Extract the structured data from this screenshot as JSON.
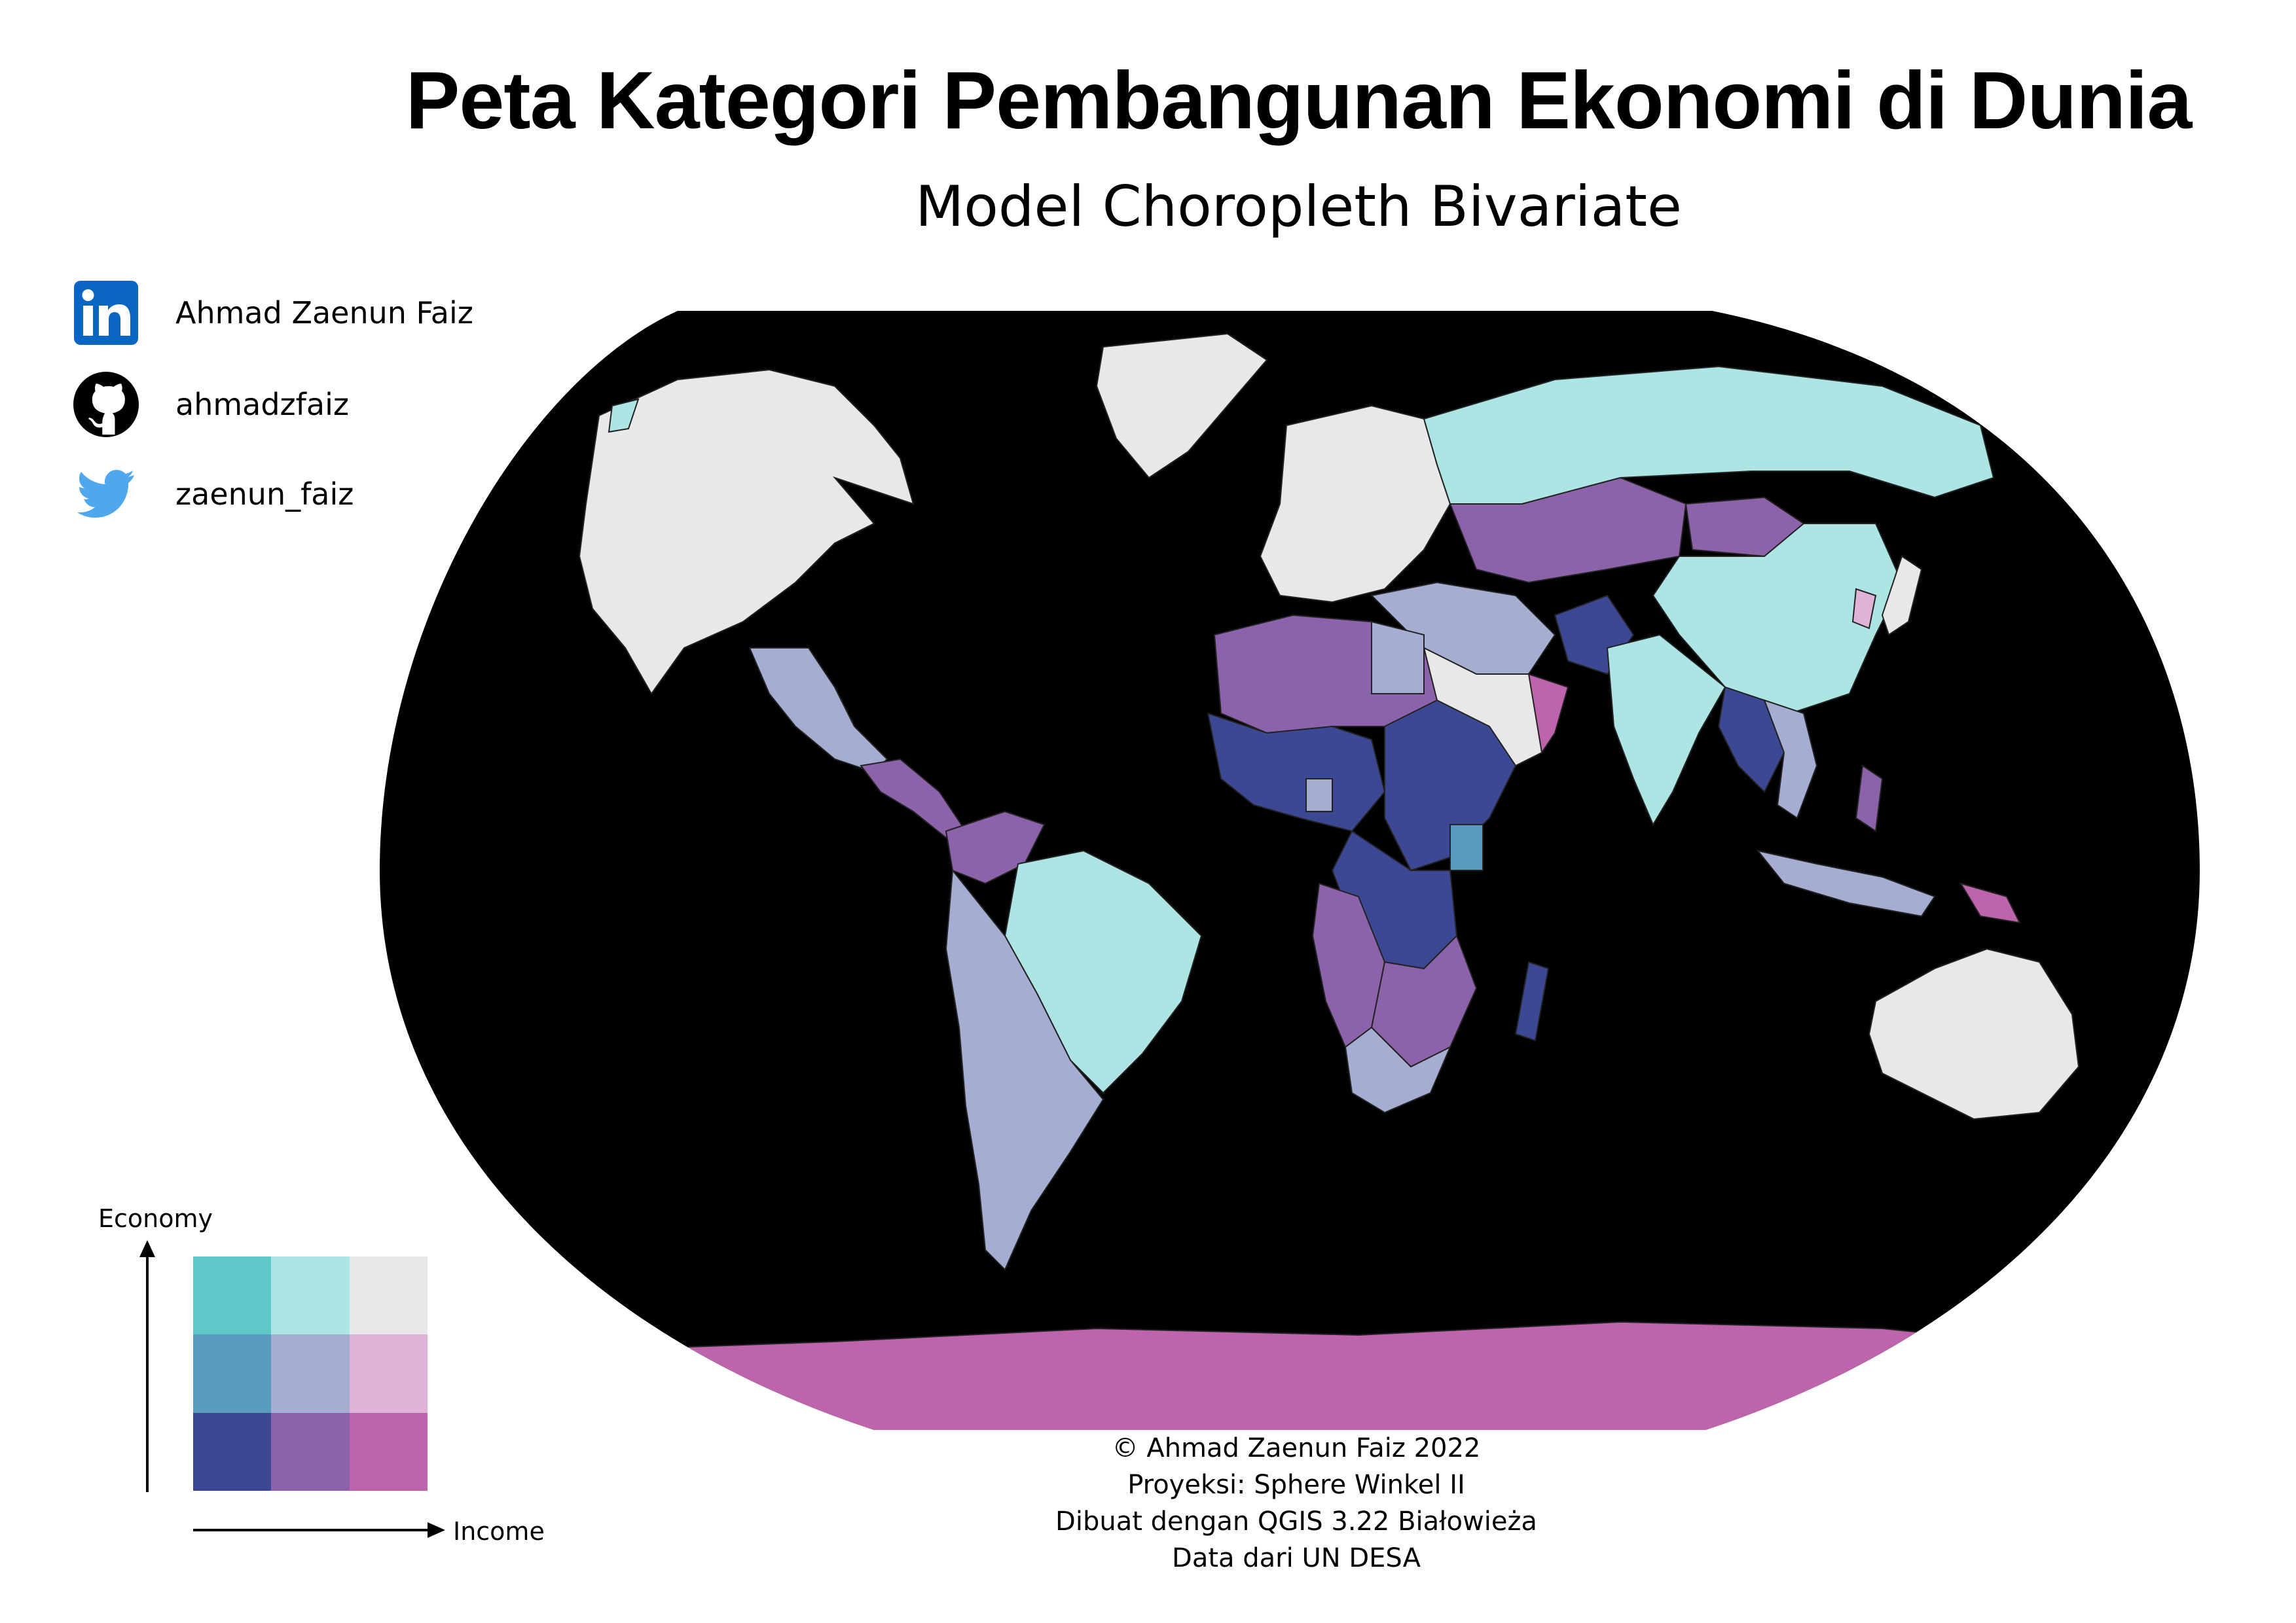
{
  "title": "Peta Kategori Pembangunan Ekonomi di Dunia",
  "subtitle": "Model Choropleth Bivariate",
  "social": [
    {
      "icon": "linkedin-icon",
      "text": "Ahmad Zaenun Faiz",
      "color": "#0a66c2"
    },
    {
      "icon": "github-icon",
      "text": "ahmadzfaiz",
      "color": "#000000"
    },
    {
      "icon": "twitter-icon",
      "text": "zaenun_faiz",
      "color": "#1d9bf0"
    }
  ],
  "legend": {
    "y_label": "Economy",
    "x_label": "Income",
    "grid": [
      [
        "#5ec8c8",
        "#ade5e4",
        "#e8e8e8"
      ],
      [
        "#5b9bbd",
        "#a5add3",
        "#e0b2d6"
      ],
      [
        "#3d4895",
        "#8c62aa",
        "#be64ac"
      ]
    ]
  },
  "map": {
    "ocean_color": "#000000",
    "border_color": "#222222"
  },
  "credits": [
    "© Ahmad Zaenun Faiz 2022",
    "Proyeksi: Sphere Winkel II",
    "Dibuat dengan QGIS 3.22 Białowieża",
    "Data dari UN DESA"
  ]
}
